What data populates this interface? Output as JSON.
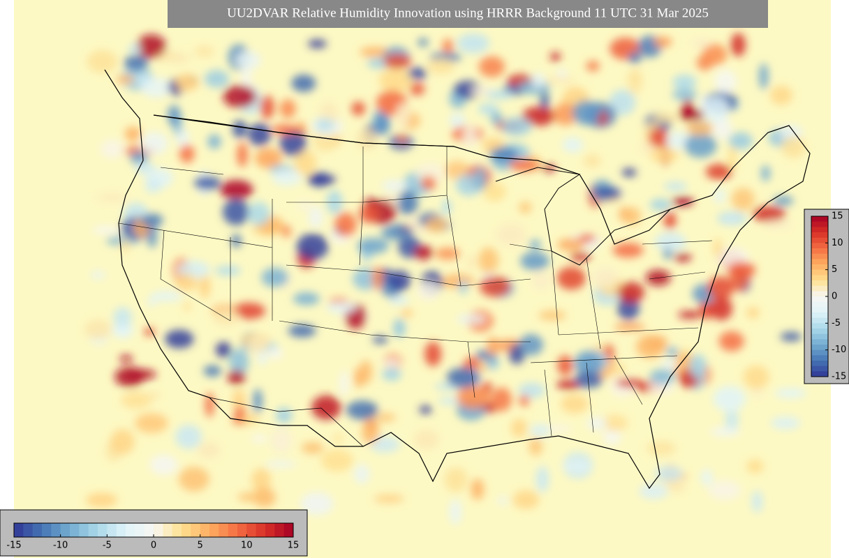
{
  "title": "UU2DVAR Relative Humidity Innovation using HRRR Background 11 UTC 31 Mar 2025",
  "colormap": [
    "#313695",
    "#4575b4",
    "#74add1",
    "#abd9e9",
    "#e0f3f8",
    "#f7f7f2",
    "#fee090",
    "#fdae61",
    "#f46d43",
    "#d73027",
    "#a50026"
  ],
  "colorbars": [
    {
      "orientation": "vertical",
      "lim": [
        -15,
        15
      ],
      "ticks": [
        -15,
        -10,
        -5,
        0,
        5,
        10,
        15
      ]
    },
    {
      "orientation": "horizontal",
      "lim": [
        -15,
        15
      ],
      "ticks": [
        -15,
        -10,
        -5,
        0,
        5,
        10,
        15
      ]
    }
  ]
}
